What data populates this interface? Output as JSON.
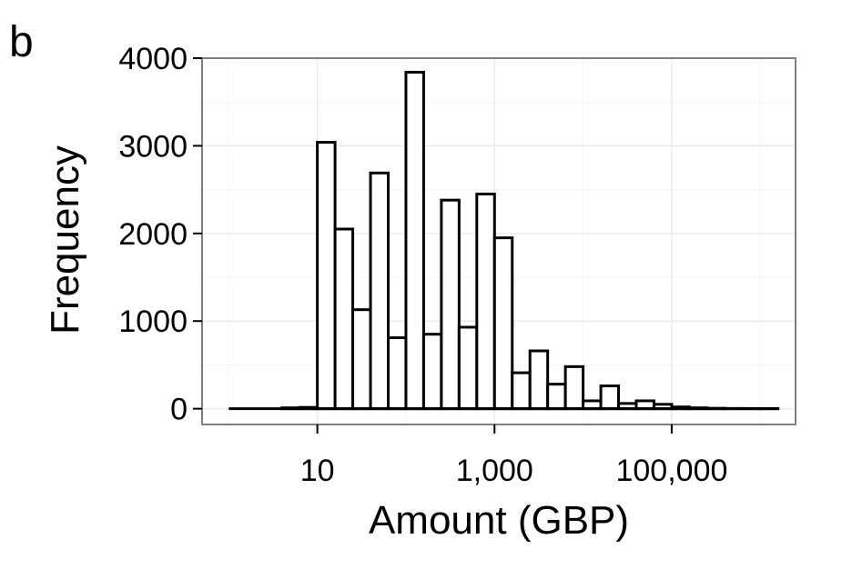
{
  "panel_label": "b",
  "chart_data": {
    "type": "bar",
    "subtype": "histogram",
    "x_scale": "log10",
    "xlabel": "Amount (GBP)",
    "ylabel": "Frequency",
    "x_ticks": [
      10,
      1000,
      100000
    ],
    "x_tick_labels": [
      "10",
      "1,000",
      "100,000"
    ],
    "y_ticks": [
      0,
      1000,
      2000,
      3000,
      4000
    ],
    "y_tick_labels": [
      "0",
      "1000",
      "2000",
      "3000",
      "4000"
    ],
    "xlim": [
      0.5,
      2500000
    ],
    "ylim": [
      -180,
      4000
    ],
    "grid": true,
    "bin_log10_width": 0.2,
    "bins": [
      {
        "x_start": 1.0,
        "x_end": 1.58,
        "count": 0
      },
      {
        "x_start": 1.58,
        "x_end": 2.51,
        "count": 0
      },
      {
        "x_start": 2.51,
        "x_end": 3.98,
        "count": 0
      },
      {
        "x_start": 3.98,
        "x_end": 6.31,
        "count": 10
      },
      {
        "x_start": 6.31,
        "x_end": 10.0,
        "count": 15
      },
      {
        "x_start": 10.0,
        "x_end": 15.85,
        "count": 3040
      },
      {
        "x_start": 15.85,
        "x_end": 25.12,
        "count": 2050
      },
      {
        "x_start": 25.12,
        "x_end": 39.81,
        "count": 1130
      },
      {
        "x_start": 39.81,
        "x_end": 63.1,
        "count": 2690
      },
      {
        "x_start": 63.1,
        "x_end": 100.0,
        "count": 810
      },
      {
        "x_start": 100.0,
        "x_end": 158.5,
        "count": 3840
      },
      {
        "x_start": 158.5,
        "x_end": 251.2,
        "count": 850
      },
      {
        "x_start": 251.2,
        "x_end": 398.1,
        "count": 2380
      },
      {
        "x_start": 398.1,
        "x_end": 631.0,
        "count": 930
      },
      {
        "x_start": 631.0,
        "x_end": 1000.0,
        "count": 2450
      },
      {
        "x_start": 1000.0,
        "x_end": 1585.0,
        "count": 1950
      },
      {
        "x_start": 1585.0,
        "x_end": 2512.0,
        "count": 410
      },
      {
        "x_start": 2512.0,
        "x_end": 3981.0,
        "count": 660
      },
      {
        "x_start": 3981.0,
        "x_end": 6310.0,
        "count": 280
      },
      {
        "x_start": 6310.0,
        "x_end": 10000.0,
        "count": 480
      },
      {
        "x_start": 10000.0,
        "x_end": 15850.0,
        "count": 90
      },
      {
        "x_start": 15850.0,
        "x_end": 25120.0,
        "count": 260
      },
      {
        "x_start": 25120.0,
        "x_end": 39810.0,
        "count": 60
      },
      {
        "x_start": 39810.0,
        "x_end": 63100.0,
        "count": 90
      },
      {
        "x_start": 63100.0,
        "x_end": 100000.0,
        "count": 50
      },
      {
        "x_start": 100000.0,
        "x_end": 158500.0,
        "count": 20
      },
      {
        "x_start": 158500.0,
        "x_end": 251200.0,
        "count": 10
      },
      {
        "x_start": 251200.0,
        "x_end": 398100.0,
        "count": 5
      },
      {
        "x_start": 398100.0,
        "x_end": 631000.0,
        "count": 3
      },
      {
        "x_start": 631000.0,
        "x_end": 1000000.0,
        "count": 2
      },
      {
        "x_start": 1000000.0,
        "x_end": 1585000.0,
        "count": 1
      }
    ],
    "colors": {
      "panel_background": "#ffffff",
      "grid_major": "#ebebeb",
      "grid_minor": "#f5f5f5",
      "panel_border": "#7f7f7f",
      "bar_fill": "#ffffff",
      "bar_stroke": "#000000"
    }
  }
}
